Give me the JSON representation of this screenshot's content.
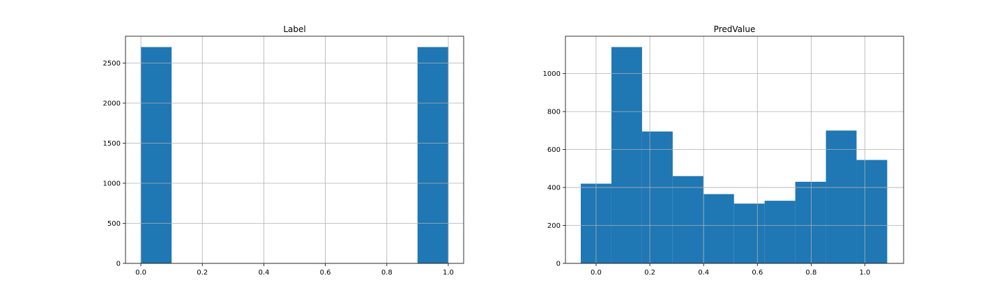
{
  "chart_data": [
    {
      "type": "bar",
      "title": "Label",
      "xlabel": "",
      "ylabel": "",
      "grid": true,
      "color": "#1f77b4",
      "xlim": [
        -0.05,
        1.05
      ],
      "ylim": [
        0,
        2835
      ],
      "xticks": [
        0.0,
        0.2,
        0.4,
        0.6,
        0.8,
        1.0
      ],
      "xtick_labels": [
        "0.0",
        "0.2",
        "0.4",
        "0.6",
        "0.8",
        "1.0"
      ],
      "yticks": [
        0,
        500,
        1000,
        1500,
        2000,
        2500
      ],
      "ytick_labels": [
        "0",
        "500",
        "1000",
        "1500",
        "2000",
        "2500"
      ],
      "bins": [
        {
          "x0": 0.0,
          "x1": 0.1,
          "count": 2700
        },
        {
          "x0": 0.9,
          "x1": 1.0,
          "count": 2700
        }
      ]
    },
    {
      "type": "bar",
      "title": "PredValue",
      "xlabel": "",
      "ylabel": "",
      "grid": true,
      "color": "#1f77b4",
      "xlim": [
        -0.114,
        1.144
      ],
      "ylim": [
        0,
        1197
      ],
      "xticks": [
        0.0,
        0.2,
        0.4,
        0.6,
        0.8,
        1.0
      ],
      "xtick_labels": [
        "0.0",
        "0.2",
        "0.4",
        "0.6",
        "0.8",
        "1.0"
      ],
      "yticks": [
        0,
        200,
        400,
        600,
        800,
        1000
      ],
      "ytick_labels": [
        "0",
        "200",
        "400",
        "600",
        "800",
        "1000"
      ],
      "bins": [
        {
          "x0": -0.057,
          "x1": 0.057,
          "count": 420
        },
        {
          "x0": 0.057,
          "x1": 0.171,
          "count": 1140
        },
        {
          "x0": 0.171,
          "x1": 0.285,
          "count": 695
        },
        {
          "x0": 0.285,
          "x1": 0.399,
          "count": 460
        },
        {
          "x0": 0.399,
          "x1": 0.513,
          "count": 365
        },
        {
          "x0": 0.513,
          "x1": 0.627,
          "count": 315
        },
        {
          "x0": 0.627,
          "x1": 0.741,
          "count": 330
        },
        {
          "x0": 0.741,
          "x1": 0.855,
          "count": 430
        },
        {
          "x0": 0.855,
          "x1": 0.969,
          "count": 700
        },
        {
          "x0": 0.969,
          "x1": 1.083,
          "count": 545
        }
      ]
    }
  ]
}
